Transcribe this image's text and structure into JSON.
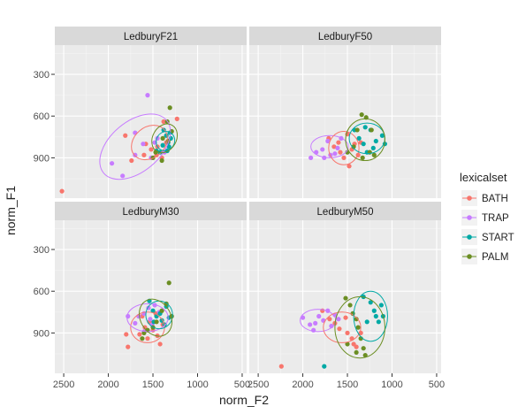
{
  "chart_data": {
    "type": "scatter",
    "subtype": "faceted scatter with ellipses",
    "xlabel": "norm_F2",
    "ylabel": "norm_F1",
    "x_reversed": true,
    "y_reversed": true,
    "xlim": [
      2600,
      450
    ],
    "ylim": [
      1190,
      90
    ],
    "x_ticks": [
      2500,
      2000,
      1500,
      1000,
      500
    ],
    "y_ticks": [
      300,
      600,
      900
    ],
    "grid": true,
    "legend": {
      "title": "lexicalset",
      "position": "right",
      "entries": [
        {
          "name": "BATH",
          "color": "#F8766D"
        },
        {
          "name": "TRAP",
          "color": "#C77CFF"
        },
        {
          "name": "START",
          "color": "#00A9A5"
        },
        {
          "name": "PALM",
          "color": "#6B8E23"
        }
      ]
    },
    "panels": [
      {
        "title": "LedburyF21",
        "series": [
          {
            "name": "BATH",
            "points": [
              [
                2520,
                1140
              ],
              [
                1810,
                740
              ],
              [
                1740,
                920
              ],
              [
                1580,
                800
              ],
              [
                1520,
                840
              ],
              [
                1460,
                880
              ],
              [
                1450,
                820
              ],
              [
                1400,
                900
              ],
              [
                1230,
                620
              ],
              [
                1380,
                640
              ],
              [
                1600,
                880
              ],
              [
                1350,
                790
              ]
            ]
          },
          {
            "name": "TRAP",
            "points": [
              [
                1960,
                940
              ],
              [
                1840,
                1030
              ],
              [
                1700,
                720
              ],
              [
                1610,
                800
              ],
              [
                1560,
                450
              ],
              [
                1480,
                790
              ],
              [
                1450,
                760
              ],
              [
                1370,
                860
              ],
              [
                1700,
                880
              ],
              [
                1520,
                900
              ]
            ]
          },
          {
            "name": "START",
            "points": [
              [
                1380,
                700
              ],
              [
                1350,
                740
              ],
              [
                1330,
                790
              ],
              [
                1320,
                820
              ],
              [
                1300,
                760
              ],
              [
                1420,
                860
              ],
              [
                1460,
                850
              ],
              [
                1340,
                850
              ],
              [
                1310,
                720
              ],
              [
                1390,
                810
              ]
            ]
          },
          {
            "name": "PALM",
            "points": [
              [
                1310,
                540
              ],
              [
                1340,
                640
              ],
              [
                1290,
                710
              ],
              [
                1390,
                760
              ],
              [
                1470,
                860
              ],
              [
                1400,
                920
              ],
              [
                1500,
                900
              ],
              [
                1330,
                780
              ]
            ]
          }
        ],
        "ellipses": [
          {
            "name": "TRAP",
            "cx": 1700,
            "cy": 820,
            "rx": 460,
            "ry": 180,
            "rotation": -40
          },
          {
            "name": "BATH",
            "cx": 1540,
            "cy": 790,
            "rx": 220,
            "ry": 110,
            "rotation": -40
          },
          {
            "name": "START",
            "cx": 1360,
            "cy": 780,
            "rx": 110,
            "ry": 65,
            "rotation": -55
          },
          {
            "name": "PALM",
            "cx": 1370,
            "cy": 760,
            "rx": 170,
            "ry": 85,
            "rotation": -60
          }
        ]
      },
      {
        "title": "LedburyF50",
        "series": [
          {
            "name": "BATH",
            "points": [
              [
                1710,
                760
              ],
              [
                1650,
                820
              ],
              [
                1580,
                860
              ],
              [
                1540,
                900
              ],
              [
                1480,
                960
              ],
              [
                1450,
                840
              ],
              [
                1420,
                800
              ],
              [
                1380,
                880
              ],
              [
                1500,
                730
              ],
              [
                1350,
                790
              ],
              [
                1600,
                790
              ]
            ]
          },
          {
            "name": "TRAP",
            "points": [
              [
                1910,
                900
              ],
              [
                1850,
                860
              ],
              [
                1780,
                840
              ],
              [
                1720,
                780
              ],
              [
                1690,
                880
              ],
              [
                1640,
                870
              ],
              [
                1610,
                830
              ],
              [
                1570,
                760
              ],
              [
                1760,
                900
              ]
            ]
          },
          {
            "name": "START",
            "points": [
              [
                1420,
                700
              ],
              [
                1370,
                760
              ],
              [
                1320,
                800
              ],
              [
                1280,
                860
              ],
              [
                1240,
                700
              ],
              [
                1180,
                780
              ],
              [
                1110,
                740
              ],
              [
                1080,
                800
              ],
              [
                1300,
                680
              ],
              [
                1210,
                830
              ]
            ]
          },
          {
            "name": "PALM",
            "points": [
              [
                1340,
                590
              ],
              [
                1290,
                610
              ],
              [
                1230,
                700
              ],
              [
                1430,
                820
              ],
              [
                1500,
                860
              ],
              [
                1200,
                880
              ],
              [
                1250,
                860
              ],
              [
                1330,
                900
              ],
              [
                1390,
                700
              ]
            ]
          }
        ],
        "ellipses": [
          {
            "name": "TRAP",
            "cx": 1700,
            "cy": 820,
            "rx": 210,
            "ry": 80,
            "rotation": 0
          },
          {
            "name": "BATH",
            "cx": 1540,
            "cy": 830,
            "rx": 170,
            "ry": 120,
            "rotation": 0
          },
          {
            "name": "START",
            "cx": 1280,
            "cy": 760,
            "rx": 200,
            "ry": 110,
            "rotation": 0
          },
          {
            "name": "PALM",
            "cx": 1300,
            "cy": 770,
            "rx": 220,
            "ry": 150,
            "rotation": 0
          }
        ]
      },
      {
        "title": "LedburyM30",
        "series": [
          {
            "name": "BATH",
            "points": [
              [
                1800,
                910
              ],
              [
                1780,
                1000
              ],
              [
                1650,
                910
              ],
              [
                1590,
                860
              ],
              [
                1540,
                820
              ],
              [
                1500,
                880
              ],
              [
                1470,
                760
              ],
              [
                1450,
                920
              ],
              [
                1420,
                980
              ],
              [
                1390,
                840
              ],
              [
                1620,
                780
              ],
              [
                1560,
                940
              ]
            ]
          },
          {
            "name": "TRAP",
            "points": [
              [
                1780,
                780
              ],
              [
                1700,
                830
              ],
              [
                1660,
                780
              ],
              [
                1600,
                760
              ],
              [
                1550,
                720
              ],
              [
                1530,
                800
              ],
              [
                1480,
                700
              ],
              [
                1430,
                750
              ],
              [
                1600,
                890
              ],
              [
                1510,
                840
              ]
            ]
          },
          {
            "name": "START",
            "points": [
              [
                1540,
                670
              ],
              [
                1500,
                740
              ],
              [
                1460,
                780
              ],
              [
                1420,
                760
              ],
              [
                1400,
                810
              ],
              [
                1370,
                840
              ],
              [
                1350,
                710
              ],
              [
                1320,
                790
              ],
              [
                1490,
                820
              ]
            ]
          },
          {
            "name": "PALM",
            "points": [
              [
                1320,
                540
              ],
              [
                1350,
                690
              ],
              [
                1400,
                740
              ],
              [
                1460,
                820
              ],
              [
                1500,
                860
              ],
              [
                1560,
                880
              ],
              [
                1620,
                940
              ],
              [
                1290,
                780
              ],
              [
                1600,
                900
              ]
            ]
          }
        ],
        "ellipses": [
          {
            "name": "BATH",
            "cx": 1560,
            "cy": 860,
            "rx": 190,
            "ry": 110,
            "rotation": 0
          },
          {
            "name": "TRAP",
            "cx": 1560,
            "cy": 790,
            "rx": 230,
            "ry": 100,
            "rotation": 0
          },
          {
            "name": "START",
            "cx": 1430,
            "cy": 770,
            "rx": 150,
            "ry": 100,
            "rotation": 0
          },
          {
            "name": "PALM",
            "cx": 1470,
            "cy": 790,
            "rx": 170,
            "ry": 140,
            "rotation": -30
          }
        ]
      },
      {
        "title": "LedburyM50",
        "series": [
          {
            "name": "BATH",
            "points": [
              [
                2240,
                1140
              ],
              [
                1780,
                740
              ],
              [
                1700,
                800
              ],
              [
                1640,
                830
              ],
              [
                1590,
                870
              ],
              [
                1500,
                900
              ],
              [
                1450,
                940
              ],
              [
                1430,
                980
              ],
              [
                1400,
                1000
              ],
              [
                1520,
                790
              ],
              [
                1350,
                900
              ]
            ]
          },
          {
            "name": "TRAP",
            "points": [
              [
                2000,
                790
              ],
              [
                1920,
                840
              ],
              [
                1880,
                880
              ],
              [
                1820,
                780
              ],
              [
                1770,
                810
              ],
              [
                1720,
                740
              ],
              [
                1680,
                850
              ],
              [
                1640,
                770
              ],
              [
                1600,
                800
              ],
              [
                1860,
                830
              ]
            ]
          },
          {
            "name": "START",
            "points": [
              [
                1760,
                1140
              ],
              [
                1320,
                640
              ],
              [
                1240,
                680
              ],
              [
                1200,
                740
              ],
              [
                1180,
                780
              ],
              [
                1150,
                820
              ],
              [
                1120,
                700
              ],
              [
                1100,
                780
              ],
              [
                1280,
                820
              ]
            ]
          },
          {
            "name": "PALM",
            "points": [
              [
                1520,
                650
              ],
              [
                1470,
                700
              ],
              [
                1440,
                760
              ],
              [
                1400,
                800
              ],
              [
                1380,
                860
              ],
              [
                1350,
                940
              ],
              [
                1320,
                1010
              ],
              [
                1300,
                1060
              ],
              [
                1500,
                980
              ],
              [
                1400,
                1040
              ]
            ]
          }
        ],
        "ellipses": [
          {
            "name": "TRAP",
            "cx": 1830,
            "cy": 810,
            "rx": 200,
            "ry": 80,
            "rotation": 0
          },
          {
            "name": "BATH",
            "cx": 1560,
            "cy": 860,
            "rx": 210,
            "ry": 110,
            "rotation": 0
          },
          {
            "name": "START",
            "cx": 1240,
            "cy": 780,
            "rx": 190,
            "ry": 180,
            "rotation": 0
          },
          {
            "name": "PALM",
            "cx": 1360,
            "cy": 860,
            "rx": 280,
            "ry": 220,
            "rotation": 0
          }
        ]
      }
    ]
  }
}
